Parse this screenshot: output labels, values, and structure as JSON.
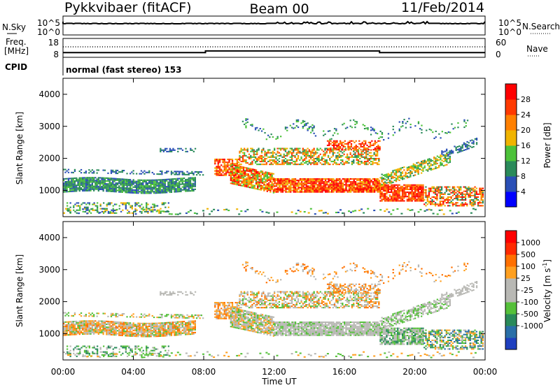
{
  "header": {
    "station": "Pykkvibaer (fitACF)",
    "beam": "Beam 00",
    "date": "11/Feb/2014"
  },
  "strips": {
    "nsky_label": "N.Sky",
    "nsky_ticks": [
      "10^5",
      "10^0"
    ],
    "nsearch_label": "N.Search",
    "nsearch_ticks": [
      "10^5",
      "10^0"
    ],
    "freq_label_1": "Freq.",
    "freq_label_2": "[MHz]",
    "freq_ticks": [
      "18",
      "8"
    ],
    "nave_label": "Nave",
    "nave_ticks": [
      "60",
      "0"
    ],
    "cpid_label": "CPID",
    "cpid_text": "normal (fast stereo) 153",
    "freq_steps": [
      {
        "t": 0,
        "v": 10.5
      },
      {
        "t": 8.1,
        "v": 11.4
      },
      {
        "t": 18.0,
        "v": 10.5
      },
      {
        "t": 24,
        "v": 10.5
      }
    ]
  },
  "chart_data": [
    {
      "type": "heatmap",
      "name": "power-panel",
      "ylabel": "Slant Range [km]",
      "xlabel": "Time UT",
      "xlim": [
        0,
        24
      ],
      "ylim": [
        180,
        4500
      ],
      "yticks": [
        1000,
        2000,
        3000,
        4000
      ],
      "xticks": [
        "00:00",
        "04:00",
        "08:00",
        "12:00",
        "16:00",
        "20:00",
        "00:00"
      ],
      "colorbar": {
        "label": "Power [dB]",
        "ticks": [
          "4",
          "8",
          "12",
          "16",
          "20",
          "24",
          "28"
        ],
        "range": [
          0,
          30
        ],
        "colors": [
          "#0000ff",
          "#2a4fb6",
          "#2a8a5a",
          "#4cc23a",
          "#f0b400",
          "#ff8000",
          "#ff3a00",
          "#ff0000"
        ]
      }
    },
    {
      "type": "heatmap",
      "name": "velocity-panel",
      "ylabel": "Slant Range [km]",
      "xlabel": "Time UT",
      "xlim": [
        0,
        24
      ],
      "ylim": [
        180,
        4500
      ],
      "yticks": [
        1000,
        2000,
        3000,
        4000
      ],
      "xticks": [
        "00:00",
        "04:00",
        "08:00",
        "12:00",
        "16:00",
        "20:00",
        "00:00"
      ],
      "colorbar": {
        "label": "Velocity [m s",
        "label_sup": "-1",
        "label_end": "]",
        "ticks": [
          "1000",
          "500",
          "100",
          "25",
          "-25",
          "-100",
          "-500",
          "-1000"
        ],
        "colors": [
          "#1f3fbf",
          "#2a6fa8",
          "#2a8a5a",
          "#55c03a",
          "#b8b8b4",
          "#b8b8b4",
          "#ffa020",
          "#ff7000",
          "#ff2a00",
          "#ff0000"
        ]
      }
    }
  ],
  "time_label": "Time UT"
}
